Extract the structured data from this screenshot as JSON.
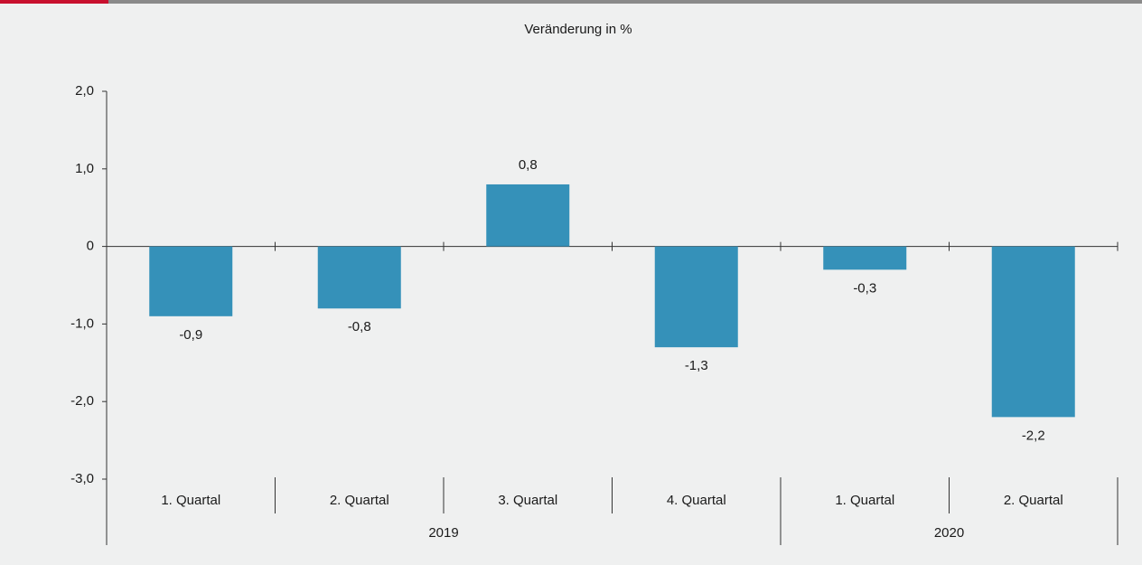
{
  "chart_data": {
    "type": "bar",
    "title": "Veränderung in %",
    "categories": [
      "1. Quartal",
      "2. Quartal",
      "3. Quartal",
      "4. Quartal",
      "1. Quartal",
      "2. Quartal"
    ],
    "category_groups": [
      {
        "name": "2019",
        "count": 4
      },
      {
        "name": "2020",
        "count": 2
      }
    ],
    "values": [
      -0.9,
      -0.8,
      0.8,
      -1.3,
      -0.3,
      -2.2
    ],
    "value_labels": [
      "-0,9",
      "-0,8",
      "0,8",
      "-1,3",
      "-0,3",
      "-2,2"
    ],
    "color": "#3591b9",
    "ylim": [
      -3,
      2
    ],
    "yticks": [
      {
        "value": 2,
        "label": "2,0"
      },
      {
        "value": 1,
        "label": "1,0"
      },
      0,
      {
        "value": -1,
        "label": "-1,0"
      },
      {
        "value": -2,
        "label": "-2,0"
      },
      {
        "value": -3,
        "label": "-3,0"
      }
    ],
    "grid": false
  }
}
